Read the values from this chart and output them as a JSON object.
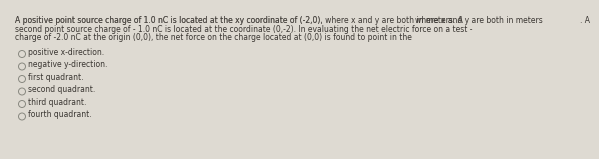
{
  "line1": "A positive point source charge of 1.0 nC is located at the xy coordinate of (-2,0), where x and y are both in meters. A",
  "line2": "second point source charge of - 1.0 nC is located at the coordinate (0,-2). In evaluating the net electric force on a test -",
  "line3": "charge of -2.0 nC at the origin (0,0), the net force on the charge located at (0,0) is found to point in the",
  "options": [
    "positive x-direction.",
    "negative y-direction.",
    "first quadrant.",
    "second quadrant.",
    "third quadrant.",
    "fourth quadrant."
  ],
  "bg_color": "#dedad2",
  "text_color": "#3a3632",
  "option_text_color": "#3a3632",
  "para_fontsize": 5.5,
  "option_fontsize": 5.5,
  "circle_color": "#888880",
  "underline_color": "#3a3632"
}
